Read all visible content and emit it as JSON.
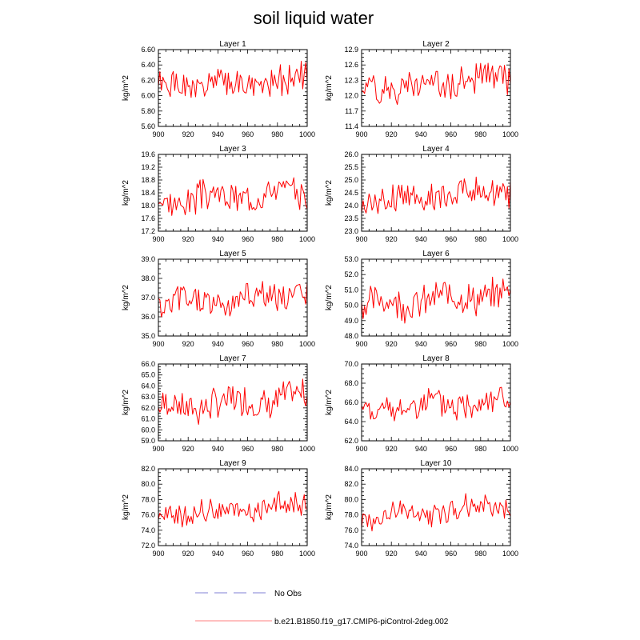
{
  "title": "soil liquid water",
  "colors": {
    "series": "#ff0000",
    "obs": "#9999dd",
    "legend_series": "#ff9999"
  },
  "legend": [
    {
      "label": "No Obs",
      "style": "dashed"
    },
    {
      "label": "b.e21.B1850.f19_g17.CMIP6-piControl-2deg.002",
      "style": "solid"
    }
  ],
  "chart_data": [
    {
      "type": "line",
      "title": "Layer 1",
      "ylabel": "kg/m^2",
      "xlim": [
        900,
        1000
      ],
      "ylim": [
        5.6,
        6.6
      ],
      "xticks": [
        "900",
        "920",
        "940",
        "960",
        "980",
        "1000"
      ],
      "yticks": [
        "5.60",
        "5.80",
        "6.00",
        "6.20",
        "6.40",
        "6.60"
      ],
      "series": [
        {
          "x_start": 900,
          "x_end": 1000,
          "mean": 6.15,
          "amplitude": 0.16,
          "trend": 0.12,
          "seed": 1
        }
      ]
    },
    {
      "type": "line",
      "title": "Layer 2",
      "ylabel": "kg/m^2",
      "xlim": [
        900,
        1000
      ],
      "ylim": [
        11.4,
        12.9
      ],
      "xticks": [
        "900",
        "920",
        "940",
        "960",
        "980",
        "1000"
      ],
      "yticks": [
        "11.4",
        "11.7",
        "12.0",
        "12.3",
        "12.6",
        "12.9"
      ],
      "series": [
        {
          "x_start": 900,
          "x_end": 1000,
          "mean": 12.25,
          "amplitude": 0.25,
          "trend": 0.2,
          "seed": 2
        }
      ]
    },
    {
      "type": "line",
      "title": "Layer 3",
      "ylabel": "kg/m^2",
      "xlim": [
        900,
        1000
      ],
      "ylim": [
        17.2,
        19.6
      ],
      "xticks": [
        "900",
        "920",
        "940",
        "960",
        "980",
        "1000"
      ],
      "yticks": [
        "17.2",
        "17.6",
        "18.0",
        "18.4",
        "18.8",
        "19.2",
        "19.6"
      ],
      "series": [
        {
          "x_start": 900,
          "x_end": 1000,
          "mean": 18.3,
          "amplitude": 0.4,
          "trend": 0.35,
          "seed": 3
        }
      ]
    },
    {
      "type": "line",
      "title": "Layer 4",
      "ylabel": "kg/m^2",
      "xlim": [
        900,
        1000
      ],
      "ylim": [
        23.0,
        26.0
      ],
      "xticks": [
        "900",
        "920",
        "940",
        "960",
        "980",
        "1000"
      ],
      "yticks": [
        "23.0",
        "23.5",
        "24.0",
        "24.5",
        "25.0",
        "25.5",
        "26.0"
      ],
      "series": [
        {
          "x_start": 900,
          "x_end": 1000,
          "mean": 24.4,
          "amplitude": 0.5,
          "trend": 0.45,
          "seed": 4
        }
      ]
    },
    {
      "type": "line",
      "title": "Layer 5",
      "ylabel": "kg/m^2",
      "xlim": [
        900,
        1000
      ],
      "ylim": [
        35.0,
        39.0
      ],
      "xticks": [
        "900",
        "920",
        "940",
        "960",
        "980",
        "1000"
      ],
      "yticks": [
        "35.0",
        "36.0",
        "37.0",
        "38.0",
        "39.0"
      ],
      "series": [
        {
          "x_start": 900,
          "x_end": 1000,
          "mean": 36.9,
          "amplitude": 0.7,
          "trend": 0.6,
          "seed": 5
        }
      ]
    },
    {
      "type": "line",
      "title": "Layer 6",
      "ylabel": "kg/m^2",
      "xlim": [
        900,
        1000
      ],
      "ylim": [
        48.0,
        53.0
      ],
      "xticks": [
        "900",
        "920",
        "940",
        "960",
        "980",
        "1000"
      ],
      "yticks": [
        "48.0",
        "49.0",
        "50.0",
        "51.0",
        "52.0",
        "53.0"
      ],
      "series": [
        {
          "x_start": 900,
          "x_end": 1000,
          "mean": 50.4,
          "amplitude": 0.9,
          "trend": 0.8,
          "seed": 6
        }
      ]
    },
    {
      "type": "line",
      "title": "Layer 7",
      "ylabel": "kg/m^2",
      "xlim": [
        900,
        1000
      ],
      "ylim": [
        59.0,
        66.0
      ],
      "xticks": [
        "900",
        "920",
        "940",
        "960",
        "980",
        "1000"
      ],
      "yticks": [
        "59.0",
        "60.0",
        "61.0",
        "62.0",
        "63.0",
        "64.0",
        "65.0",
        "66.0"
      ],
      "series": [
        {
          "x_start": 900,
          "x_end": 1000,
          "mean": 62.5,
          "amplitude": 1.2,
          "trend": 1.0,
          "seed": 7
        }
      ]
    },
    {
      "type": "line",
      "title": "Layer 8",
      "ylabel": "kg/m^2",
      "xlim": [
        900,
        1000
      ],
      "ylim": [
        62.0,
        70.0
      ],
      "xticks": [
        "900",
        "920",
        "940",
        "960",
        "980",
        "1000"
      ],
      "yticks": [
        "62.0",
        "64.0",
        "66.0",
        "68.0",
        "70.0"
      ],
      "series": [
        {
          "x_start": 900,
          "x_end": 1000,
          "mean": 65.7,
          "amplitude": 1.3,
          "trend": 1.2,
          "seed": 8
        }
      ]
    },
    {
      "type": "line",
      "title": "Layer 9",
      "ylabel": "kg/m^2",
      "xlim": [
        900,
        1000
      ],
      "ylim": [
        72.0,
        82.0
      ],
      "xticks": [
        "900",
        "920",
        "940",
        "960",
        "980",
        "1000"
      ],
      "yticks": [
        "72.0",
        "74.0",
        "76.0",
        "78.0",
        "80.0",
        "82.0"
      ],
      "series": [
        {
          "x_start": 900,
          "x_end": 1000,
          "mean": 76.6,
          "amplitude": 1.4,
          "trend": 1.6,
          "seed": 9
        }
      ]
    },
    {
      "type": "line",
      "title": "Layer 10",
      "ylabel": "kg/m^2",
      "xlim": [
        900,
        1000
      ],
      "ylim": [
        74.0,
        84.0
      ],
      "xticks": [
        "900",
        "920",
        "940",
        "960",
        "980",
        "1000"
      ],
      "yticks": [
        "74.0",
        "76.0",
        "78.0",
        "80.0",
        "82.0",
        "84.0"
      ],
      "series": [
        {
          "x_start": 900,
          "x_end": 1000,
          "mean": 78.5,
          "amplitude": 1.3,
          "trend": 1.8,
          "seed": 10
        }
      ]
    }
  ]
}
